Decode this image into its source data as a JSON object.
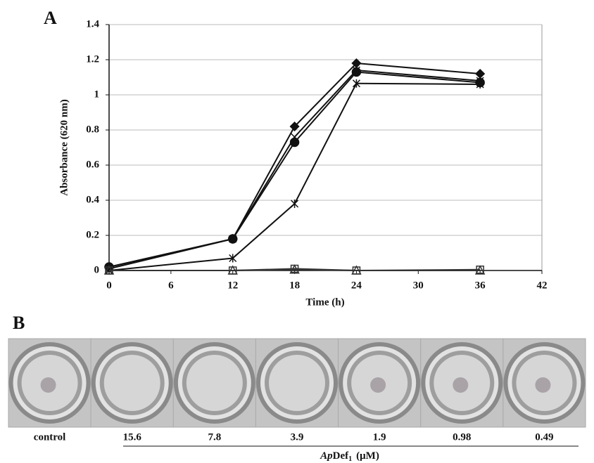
{
  "panel_labels": {
    "a": "A",
    "b": "B"
  },
  "chart_data": {
    "type": "line",
    "y_label": "Absorbance (620 nm)",
    "x_label": "Time (h)",
    "x": [
      0,
      12,
      18,
      24,
      36
    ],
    "series": [
      {
        "marker": "diamond",
        "color": "#111",
        "values": [
          0.02,
          0.18,
          0.82,
          1.18,
          1.12
        ]
      },
      {
        "marker": "circle",
        "color": "#111",
        "values": [
          0.02,
          0.18,
          0.73,
          1.13,
          1.07
        ]
      },
      {
        "marker": "cross",
        "color": "#111",
        "values": [
          0.01,
          0.18,
          0.76,
          1.14,
          1.08
        ]
      },
      {
        "marker": "star",
        "color": "#111",
        "values": [
          0,
          0.07,
          0.38,
          1.065,
          1.06
        ]
      },
      {
        "marker": "square",
        "color": "#333",
        "values": [
          0,
          0,
          0.01,
          0,
          0.005
        ]
      },
      {
        "marker": "triangle",
        "color": "#333",
        "values": [
          0,
          0,
          0.005,
          0,
          0
        ]
      }
    ],
    "xlim": [
      0,
      42
    ],
    "xticks": [
      0,
      6,
      12,
      18,
      24,
      30,
      36,
      42
    ],
    "ylim": [
      0,
      1.4
    ],
    "yticks": [
      0,
      0.2,
      0.4,
      0.6,
      0.8,
      1,
      1.2,
      1.4
    ],
    "grid": true
  },
  "plate": {
    "wells": [
      {
        "label": "control",
        "spot": true
      },
      {
        "label": "15.6",
        "spot": false
      },
      {
        "label": "7.8",
        "spot": false
      },
      {
        "label": "3.9",
        "spot": false
      },
      {
        "label": "1.9",
        "spot": true
      },
      {
        "label": "0.98",
        "spot": true
      },
      {
        "label": "0.49",
        "spot": true
      }
    ],
    "axis_label": {
      "italic": "Ap",
      "plain": "Def",
      "subscript": "1",
      "unit": "(μM)"
    }
  }
}
